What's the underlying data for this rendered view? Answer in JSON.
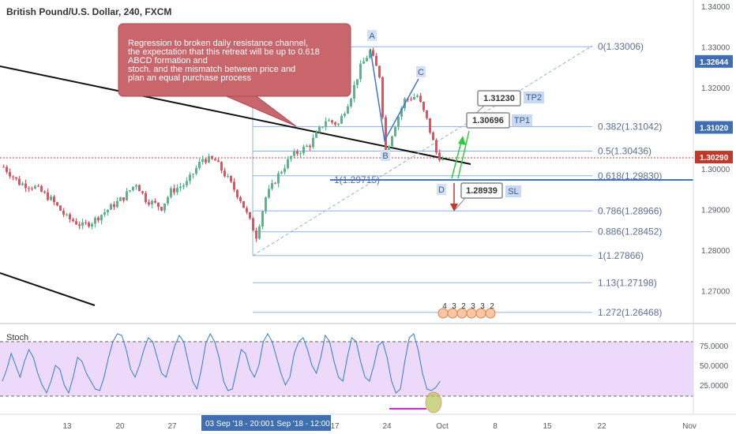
{
  "title": "British Pound/U.S. Dollar, 240, FXCM",
  "annotation_lines": [
    "Regression to broken daily resistance channel,",
    "the expectation that this retreat will be up to 0.618",
    "ABCD formation and",
    "stoch. and the mismatch between price and",
    "plan an equal purchase process"
  ],
  "colors": {
    "up": "#53b987",
    "down": "#eb4d5c",
    "fib": "#8fb1e0",
    "annotation": "#c9666b",
    "stoch_band": "#e6cbf8",
    "stoch_line": "#2f7dd6"
  },
  "chart_data": {
    "type": "candlestick",
    "title": "British Pound/U.S. Dollar, 240, FXCM",
    "price_ticks": [
      "1.34000",
      "1.33000",
      "1.32000",
      "1.31000",
      "1.30000",
      "1.29000",
      "1.28000",
      "1.27000"
    ],
    "current_price": "1.30290",
    "price_tags": [
      "1.32644",
      "1.31020",
      "1.30290"
    ],
    "time_ticks": [
      "13",
      "20",
      "27",
      "17",
      "24",
      "Oct",
      "8",
      "15",
      "22",
      "Nov"
    ],
    "crosshair_labels": [
      "03 Sep '18 - 20:00",
      "1 Sep '18 - 12:00"
    ],
    "path_points": [
      {
        "bar": 0,
        "price": 1.3005
      },
      {
        "bar": 5,
        "price": 1.2965
      },
      {
        "bar": 10,
        "price": 1.2955
      },
      {
        "bar": 15,
        "price": 1.2925
      },
      {
        "bar": 20,
        "price": 1.288
      },
      {
        "bar": 25,
        "price": 1.286
      },
      {
        "bar": 28,
        "price": 1.287
      },
      {
        "bar": 33,
        "price": 1.29
      },
      {
        "bar": 38,
        "price": 1.293
      },
      {
        "bar": 42,
        "price": 1.2965
      },
      {
        "bar": 45,
        "price": 1.2925
      },
      {
        "bar": 50,
        "price": 1.2905
      },
      {
        "bar": 53,
        "price": 1.2945
      },
      {
        "bar": 58,
        "price": 1.2965
      },
      {
        "bar": 63,
        "price": 1.3025
      },
      {
        "bar": 67,
        "price": 1.302
      },
      {
        "bar": 71,
        "price": 1.2975
      },
      {
        "bar": 75,
        "price": 1.2925
      },
      {
        "bar": 80,
        "price": 1.2835
      },
      {
        "bar": 83,
        "price": 1.293
      },
      {
        "bar": 87,
        "price": 1.2985
      },
      {
        "bar": 91,
        "price": 1.303
      },
      {
        "bar": 97,
        "price": 1.306
      },
      {
        "bar": 102,
        "price": 1.312
      },
      {
        "bar": 106,
        "price": 1.311
      },
      {
        "bar": 110,
        "price": 1.318
      },
      {
        "bar": 113,
        "price": 1.325
      },
      {
        "bar": 116,
        "price": 1.329
      },
      {
        "bar": 119,
        "price": 1.323
      },
      {
        "bar": 121,
        "price": 1.304
      },
      {
        "bar": 124,
        "price": 1.311
      },
      {
        "bar": 127,
        "price": 1.317
      },
      {
        "bar": 131,
        "price": 1.318
      },
      {
        "bar": 134,
        "price": 1.312
      },
      {
        "bar": 137,
        "price": 1.304
      },
      {
        "bar": 139,
        "price": 1.302
      }
    ],
    "fib_levels": [
      {
        "label": "0(1.33006)",
        "price": 1.33006
      },
      {
        "label": "0.382(1.31042)",
        "price": 1.31042
      },
      {
        "label": "0.5(1.30436)",
        "price": 1.30436
      },
      {
        "label": "0.618(1.29830)",
        "price": 1.2983
      },
      {
        "label": "0.786(1.28966)",
        "price": 1.28966
      },
      {
        "label": "0.886(1.28452)",
        "price": 1.28452
      },
      {
        "label": "1(1.27866)",
        "price": 1.27866
      },
      {
        "label": "1.13(1.27198)",
        "price": 1.27198
      },
      {
        "label": "1.272(1.26468)",
        "price": 1.26468
      }
    ],
    "abcd_points": [
      {
        "label": "A",
        "price": 1.33
      },
      {
        "label": "B",
        "price": 1.304
      },
      {
        "label": "C",
        "price": 1.3215
      },
      {
        "label": "D",
        "price": 1.297
      }
    ],
    "abcd_extension_label": "1(1.29715)",
    "targets": [
      {
        "label": "TP2",
        "value": "1.31230"
      },
      {
        "label": "TP1",
        "value": "1.30696"
      },
      {
        "label": "SL",
        "value": "1.28939"
      }
    ],
    "event_markers": [
      "4",
      "3",
      "2",
      "3",
      "3",
      "2"
    ],
    "stoch": {
      "label": "Stoch",
      "ticks": [
        "75.0000",
        "50.0000",
        "25.0000"
      ],
      "bands": [
        80,
        20
      ],
      "values": [
        30,
        45,
        65,
        50,
        35,
        55,
        70,
        60,
        40,
        25,
        15,
        30,
        50,
        45,
        25,
        15,
        35,
        60,
        55,
        40,
        30,
        20,
        18,
        35,
        60,
        80,
        90,
        88,
        70,
        45,
        35,
        50,
        70,
        85,
        80,
        60,
        40,
        35,
        55,
        75,
        88,
        80,
        55,
        30,
        20,
        45,
        78,
        90,
        80,
        60,
        30,
        18,
        20,
        45,
        70,
        65,
        45,
        35,
        50,
        80,
        90,
        80,
        60,
        40,
        25,
        35,
        65,
        80,
        85,
        70,
        50,
        40,
        60,
        88,
        80,
        55,
        35,
        30,
        60,
        85,
        80,
        55,
        35,
        30,
        50,
        75,
        80,
        60,
        30,
        15,
        20,
        55,
        85,
        90,
        70,
        40,
        20,
        18,
        22,
        30
      ]
    }
  }
}
